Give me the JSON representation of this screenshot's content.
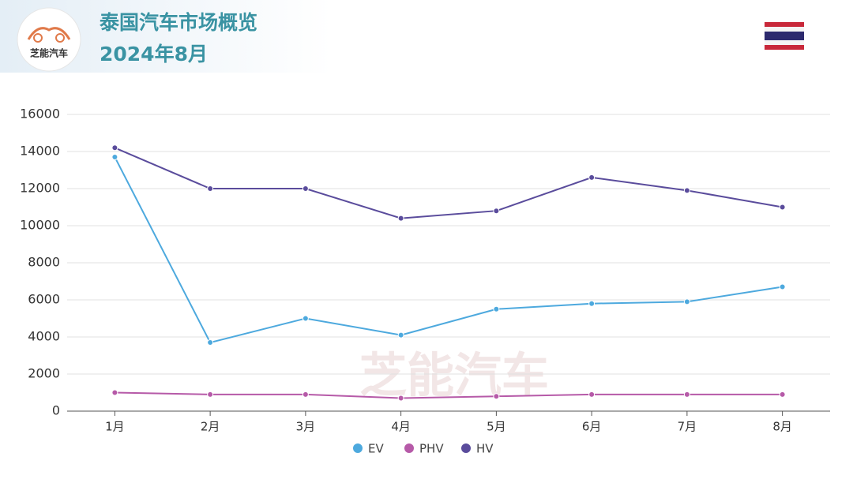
{
  "logo": "芝能汽车",
  "chart_data": {
    "type": "line",
    "title": "泰国汽车市场概览",
    "subtitle": "2024年8月",
    "watermark": "芝能汽车",
    "categories": [
      "1月",
      "2月",
      "3月",
      "4月",
      "5月",
      "6月",
      "7月",
      "8月"
    ],
    "series": [
      {
        "name": "EV",
        "color": "#4da9de",
        "values": [
          13700,
          3700,
          5000,
          4100,
          5500,
          5800,
          5900,
          6700
        ]
      },
      {
        "name": "PHV",
        "color": "#b65aa8",
        "values": [
          1000,
          900,
          900,
          700,
          800,
          900,
          900,
          900
        ]
      },
      {
        "name": "HV",
        "color": "#5a4c9c",
        "values": [
          14200,
          12000,
          12000,
          10400,
          10800,
          12600,
          11900,
          11000
        ]
      }
    ],
    "ylim": [
      0,
      16000
    ],
    "yticks": [
      0,
      2000,
      4000,
      6000,
      8000,
      10000,
      12000,
      14000,
      16000
    ],
    "grid": true,
    "legend": "bottom"
  }
}
